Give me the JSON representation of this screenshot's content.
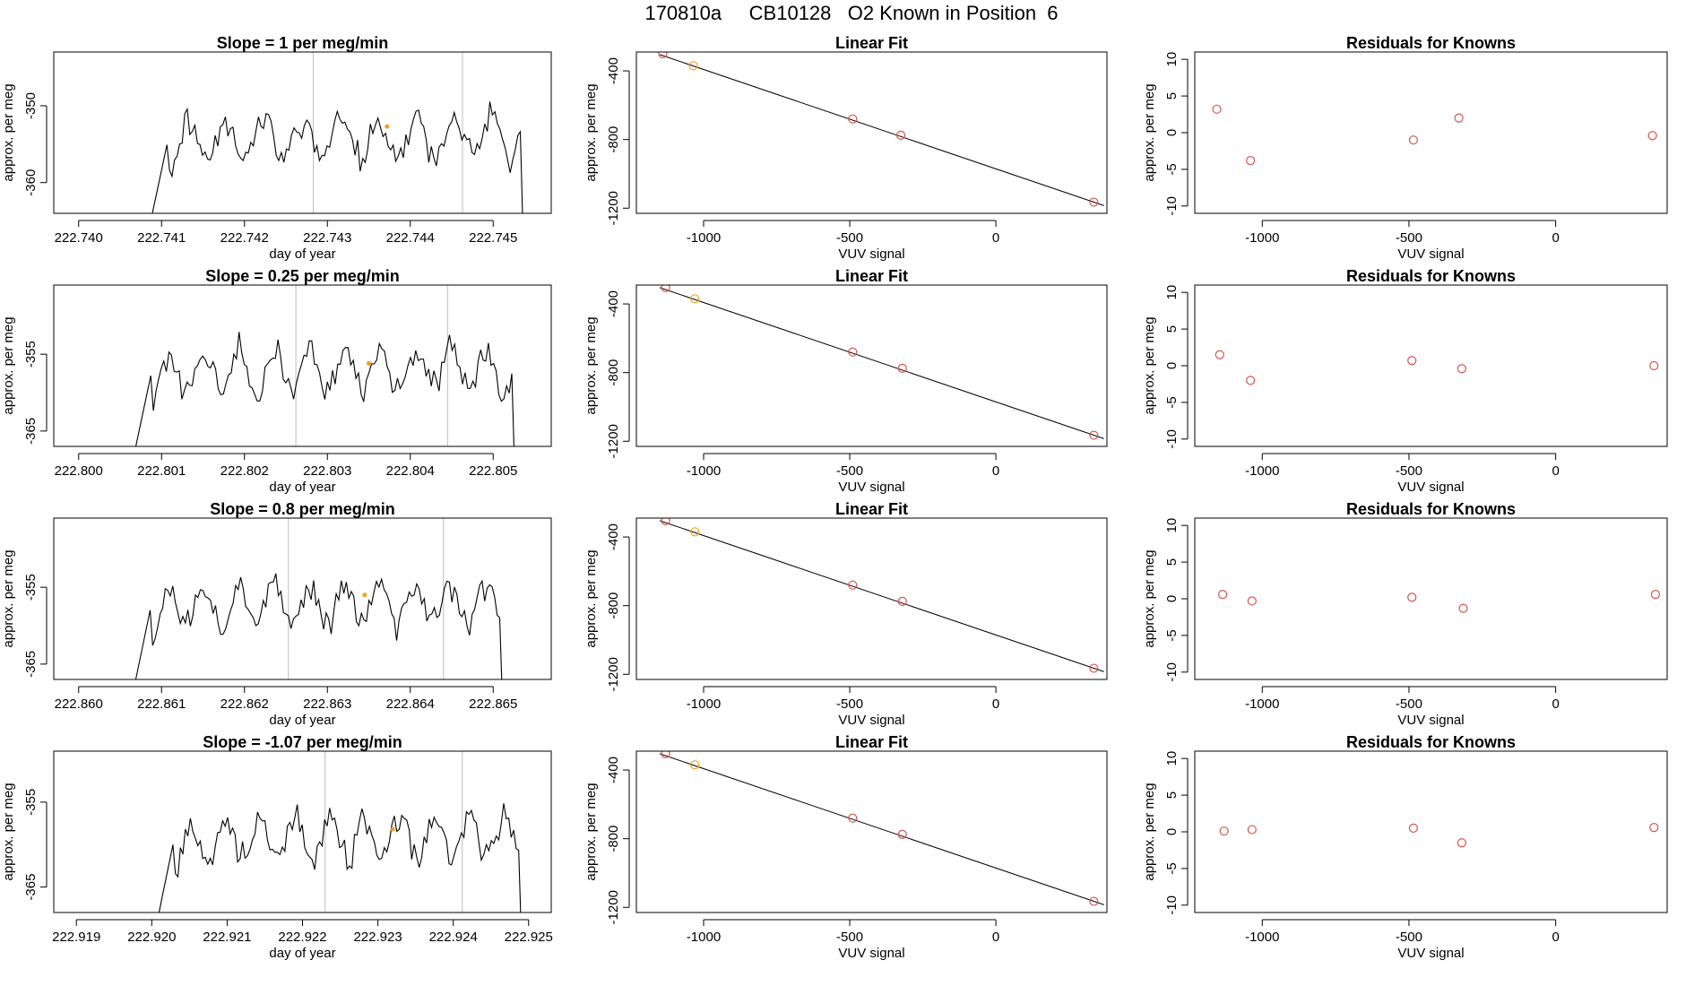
{
  "page_title": "170810a     CB10128   O2 Known in Position  6",
  "colors": {
    "frame": "#000000",
    "trace": "#000000",
    "marker": "#f0a020",
    "vline": "#bebebe",
    "points": "#d9534f",
    "line": "#000000"
  },
  "chart_data": [
    {
      "row": 1,
      "timeseries": {
        "type": "line",
        "title": "Slope =  1  per meg/min",
        "xlabel": "day of year",
        "ylabel": "approx. per meg",
        "xlim": [
          222.7397,
          222.7457
        ],
        "ylim": [
          -364,
          -343
        ],
        "xticks": [
          222.74,
          222.741,
          222.742,
          222.743,
          222.744,
          222.745
        ],
        "xtick_labels": [
          "222.740",
          "222.741",
          "222.742",
          "222.743",
          "222.744",
          "222.745"
        ],
        "yticks": [
          -350,
          -360
        ],
        "ytick_labels": [
          "-350",
          "-360"
        ],
        "vlines": [
          222.74283,
          222.74463
        ],
        "marker": [
          222.74372,
          -352.7
        ],
        "trace": {
          "start": 222.74085,
          "end": 222.74545,
          "seed": 11,
          "base": -354.3,
          "amp": 2.6,
          "amp2": 1.4,
          "freq": 300
        }
      },
      "fit": {
        "type": "scatter",
        "title": "Linear Fit",
        "xlabel": "VUV signal",
        "ylabel": "approx. per meg",
        "xlim": [
          -1230,
          380
        ],
        "ylim": [
          -1230,
          -290
        ],
        "xticks": [
          -1000,
          -500,
          0
        ],
        "xtick_labels": [
          "-1000",
          "-500",
          "0"
        ],
        "yticks": [
          -400,
          -800,
          -1200
        ],
        "ytick_labels": [
          "-400",
          "-800",
          "-1200"
        ],
        "line": [
          [
            -1150,
            -305
          ],
          [
            370,
            -1185
          ]
        ],
        "points": [
          [
            -1140,
            -300,
            "red"
          ],
          [
            -1035,
            -370,
            "orange"
          ],
          [
            -490,
            -680,
            "red"
          ],
          [
            -325,
            -775,
            "red"
          ],
          [
            335,
            -1165,
            "red"
          ]
        ]
      },
      "residuals": {
        "type": "scatter",
        "title": "Residuals for Knowns",
        "xlabel": "VUV signal",
        "ylabel": "approx. per meg",
        "xlim": [
          -1230,
          380
        ],
        "ylim": [
          -11,
          11
        ],
        "xticks": [
          -1000,
          -500,
          0
        ],
        "xtick_labels": [
          "-1000",
          "-500",
          "0"
        ],
        "yticks": [
          10,
          5,
          0,
          -5,
          -10
        ],
        "ytick_labels": [
          "10",
          "5",
          "0",
          "-5",
          "-10"
        ],
        "points": [
          [
            -1155,
            3.2
          ],
          [
            -1040,
            -3.8
          ],
          [
            -485,
            -1.0
          ],
          [
            -330,
            2.0
          ],
          [
            330,
            -0.4
          ]
        ]
      }
    },
    {
      "row": 2,
      "timeseries": {
        "type": "line",
        "title": "Slope =  0.25  per meg/min",
        "xlabel": "day of year",
        "ylabel": "approx. per meg",
        "xlim": [
          222.7997,
          222.8057
        ],
        "ylim": [
          -367,
          -346
        ],
        "xticks": [
          222.8,
          222.801,
          222.802,
          222.803,
          222.804,
          222.805
        ],
        "xtick_labels": [
          "222.800",
          "222.801",
          "222.802",
          "222.803",
          "222.804",
          "222.805"
        ],
        "yticks": [
          -355,
          -365
        ],
        "ytick_labels": [
          "-355",
          "-365"
        ],
        "vlines": [
          222.80262,
          222.80445
        ],
        "marker": [
          222.8035,
          -356.2
        ],
        "trace": {
          "start": 222.80065,
          "end": 222.80535,
          "seed": 23,
          "base": -357.0,
          "amp": 2.6,
          "amp2": 1.3,
          "freq": 330
        }
      },
      "fit": {
        "type": "scatter",
        "title": "Linear Fit",
        "xlabel": "VUV signal",
        "ylabel": "approx. per meg",
        "xlim": [
          -1230,
          380
        ],
        "ylim": [
          -1230,
          -290
        ],
        "xticks": [
          -1000,
          -500,
          0
        ],
        "xtick_labels": [
          "-1000",
          "-500",
          "0"
        ],
        "yticks": [
          -400,
          -800,
          -1200
        ],
        "ytick_labels": [
          "-400",
          "-800",
          "-1200"
        ],
        "line": [
          [
            -1150,
            -305
          ],
          [
            370,
            -1185
          ]
        ],
        "points": [
          [
            -1130,
            -305,
            "red"
          ],
          [
            -1030,
            -370,
            "orange"
          ],
          [
            -490,
            -680,
            "red"
          ],
          [
            -320,
            -775,
            "red"
          ],
          [
            335,
            -1165,
            "red"
          ]
        ]
      },
      "residuals": {
        "type": "scatter",
        "title": "Residuals for Knowns",
        "xlabel": "VUV signal",
        "ylabel": "approx. per meg",
        "xlim": [
          -1230,
          380
        ],
        "ylim": [
          -11,
          11
        ],
        "xticks": [
          -1000,
          -500,
          0
        ],
        "xtick_labels": [
          "-1000",
          "-500",
          "0"
        ],
        "yticks": [
          10,
          5,
          0,
          -5,
          -10
        ],
        "ytick_labels": [
          "10",
          "5",
          "0",
          "-5",
          "-10"
        ],
        "points": [
          [
            -1145,
            1.5
          ],
          [
            -1040,
            -2.0
          ],
          [
            -490,
            0.7
          ],
          [
            -320,
            -0.4
          ],
          [
            335,
            0.0
          ]
        ]
      }
    },
    {
      "row": 3,
      "timeseries": {
        "type": "line",
        "title": "Slope =  0.8  per meg/min",
        "xlabel": "day of year",
        "ylabel": "approx. per meg",
        "xlim": [
          222.8597,
          222.8657
        ],
        "ylim": [
          -367,
          -346
        ],
        "xticks": [
          222.86,
          222.861,
          222.862,
          222.863,
          222.864,
          222.865
        ],
        "xtick_labels": [
          "222.860",
          "222.861",
          "222.862",
          "222.863",
          "222.864",
          "222.865"
        ],
        "yticks": [
          -355,
          -365
        ],
        "ytick_labels": [
          "-355",
          "-365"
        ],
        "vlines": [
          222.86253,
          222.8644
        ],
        "marker": [
          222.86345,
          -356.0
        ],
        "trace": {
          "start": 222.86065,
          "end": 222.8652,
          "seed": 37,
          "base": -357.2,
          "amp": 2.5,
          "amp2": 1.3,
          "freq": 320
        }
      },
      "fit": {
        "type": "scatter",
        "title": "Linear Fit",
        "xlabel": "VUV signal",
        "ylabel": "approx. per meg",
        "xlim": [
          -1230,
          380
        ],
        "ylim": [
          -1230,
          -290
        ],
        "xticks": [
          -1000,
          -500,
          0
        ],
        "xtick_labels": [
          "-1000",
          "-500",
          "0"
        ],
        "yticks": [
          -400,
          -800,
          -1200
        ],
        "ytick_labels": [
          "-400",
          "-800",
          "-1200"
        ],
        "line": [
          [
            -1150,
            -305
          ],
          [
            370,
            -1185
          ]
        ],
        "points": [
          [
            -1130,
            -305,
            "red"
          ],
          [
            -1030,
            -370,
            "orange"
          ],
          [
            -490,
            -680,
            "red"
          ],
          [
            -320,
            -775,
            "red"
          ],
          [
            335,
            -1165,
            "red"
          ]
        ]
      },
      "residuals": {
        "type": "scatter",
        "title": "Residuals for Knowns",
        "xlabel": "VUV signal",
        "ylabel": "approx. per meg",
        "xlim": [
          -1230,
          380
        ],
        "ylim": [
          -11,
          11
        ],
        "xticks": [
          -1000,
          -500,
          0
        ],
        "xtick_labels": [
          "-1000",
          "-500",
          "0"
        ],
        "yticks": [
          10,
          5,
          0,
          -5,
          -10
        ],
        "ytick_labels": [
          "10",
          "5",
          "0",
          "-5",
          "-10"
        ],
        "points": [
          [
            -1135,
            0.6
          ],
          [
            -1035,
            -0.3
          ],
          [
            -490,
            0.2
          ],
          [
            -315,
            -1.3
          ],
          [
            340,
            0.6
          ]
        ]
      }
    },
    {
      "row": 4,
      "timeseries": {
        "type": "line",
        "title": "Slope =  -1.07  per meg/min",
        "xlabel": "day of year",
        "ylabel": "approx. per meg",
        "xlim": [
          222.9187,
          222.9253
        ],
        "ylim": [
          -368,
          -349
        ],
        "xticks": [
          222.919,
          222.92,
          222.921,
          222.922,
          222.923,
          222.924,
          222.925
        ],
        "xtick_labels": [
          "222.919",
          "222.920",
          "222.921",
          "222.922",
          "222.923",
          "222.924",
          "222.925"
        ],
        "yticks": [
          -355,
          -365
        ],
        "ytick_labels": [
          "-355",
          "-365"
        ],
        "vlines": [
          222.9223,
          222.92412
        ],
        "marker": [
          222.9232,
          -358.2
        ],
        "trace": {
          "start": 222.92005,
          "end": 222.925,
          "seed": 53,
          "base": -359.3,
          "amp": 2.4,
          "amp2": 1.3,
          "freq": 320
        }
      },
      "fit": {
        "type": "scatter",
        "title": "Linear Fit",
        "xlabel": "VUV signal",
        "ylabel": "approx. per meg",
        "xlim": [
          -1230,
          380
        ],
        "ylim": [
          -1230,
          -290
        ],
        "xticks": [
          -1000,
          -500,
          0
        ],
        "xtick_labels": [
          "-1000",
          "-500",
          "0"
        ],
        "yticks": [
          -400,
          -800,
          -1200
        ],
        "ytick_labels": [
          "-400",
          "-800",
          "-1200"
        ],
        "line": [
          [
            -1150,
            -305
          ],
          [
            370,
            -1185
          ]
        ],
        "points": [
          [
            -1130,
            -305,
            "red"
          ],
          [
            -1030,
            -370,
            "orange"
          ],
          [
            -490,
            -680,
            "red"
          ],
          [
            -320,
            -775,
            "red"
          ],
          [
            335,
            -1165,
            "red"
          ]
        ]
      },
      "residuals": {
        "type": "scatter",
        "title": "Residuals for Knowns",
        "xlabel": "VUV signal",
        "ylabel": "approx. per meg",
        "xlim": [
          -1230,
          380
        ],
        "ylim": [
          -11,
          11
        ],
        "xticks": [
          -1000,
          -500,
          0
        ],
        "xtick_labels": [
          "-1000",
          "-500",
          "0"
        ],
        "yticks": [
          10,
          5,
          0,
          -5,
          -10
        ],
        "ytick_labels": [
          "10",
          "5",
          "0",
          "-5",
          "-10"
        ],
        "points": [
          [
            -1130,
            0.1
          ],
          [
            -1035,
            0.3
          ],
          [
            -485,
            0.5
          ],
          [
            -320,
            -1.5
          ],
          [
            335,
            0.6
          ]
        ]
      }
    }
  ]
}
